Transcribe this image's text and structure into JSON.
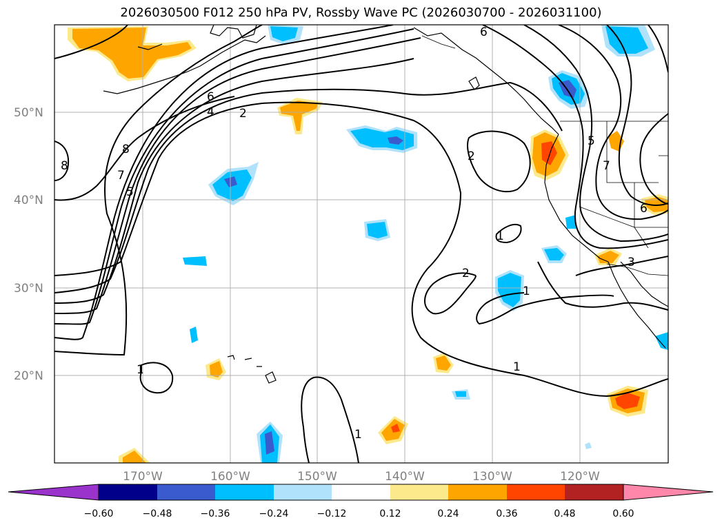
{
  "title": "2026030500 F012 250 hPa PV, Rossby Wave PC (2026030700 - 2026031100)",
  "map": {
    "lat_labels": [
      "50°N",
      "40°N",
      "30°N",
      "20°N"
    ],
    "lon_labels": [
      "170°W",
      "160°W",
      "150°W",
      "140°W",
      "130°W",
      "120°W"
    ],
    "lon_range": [
      -180,
      -110
    ],
    "lat_range": [
      10,
      60
    ],
    "contour_labels": [
      "6",
      "4",
      "2",
      "8",
      "7",
      "5",
      "8",
      "6",
      "2",
      "5",
      "7",
      "6",
      "1",
      "2",
      "1",
      "3",
      "1",
      "1",
      "1"
    ]
  },
  "colorbar": {
    "ticks": [
      "−0.60",
      "−0.48",
      "−0.36",
      "−0.24",
      "−0.12",
      "0.12",
      "0.24",
      "0.36",
      "0.48",
      "0.60"
    ],
    "colors": [
      "#9933cc",
      "#00008b",
      "#3a5bcd",
      "#00bfff",
      "#b0e2fb",
      "#ffffff",
      "#fce98c",
      "#ffa500",
      "#ff4500",
      "#b22222",
      "#ff88aa"
    ]
  }
}
